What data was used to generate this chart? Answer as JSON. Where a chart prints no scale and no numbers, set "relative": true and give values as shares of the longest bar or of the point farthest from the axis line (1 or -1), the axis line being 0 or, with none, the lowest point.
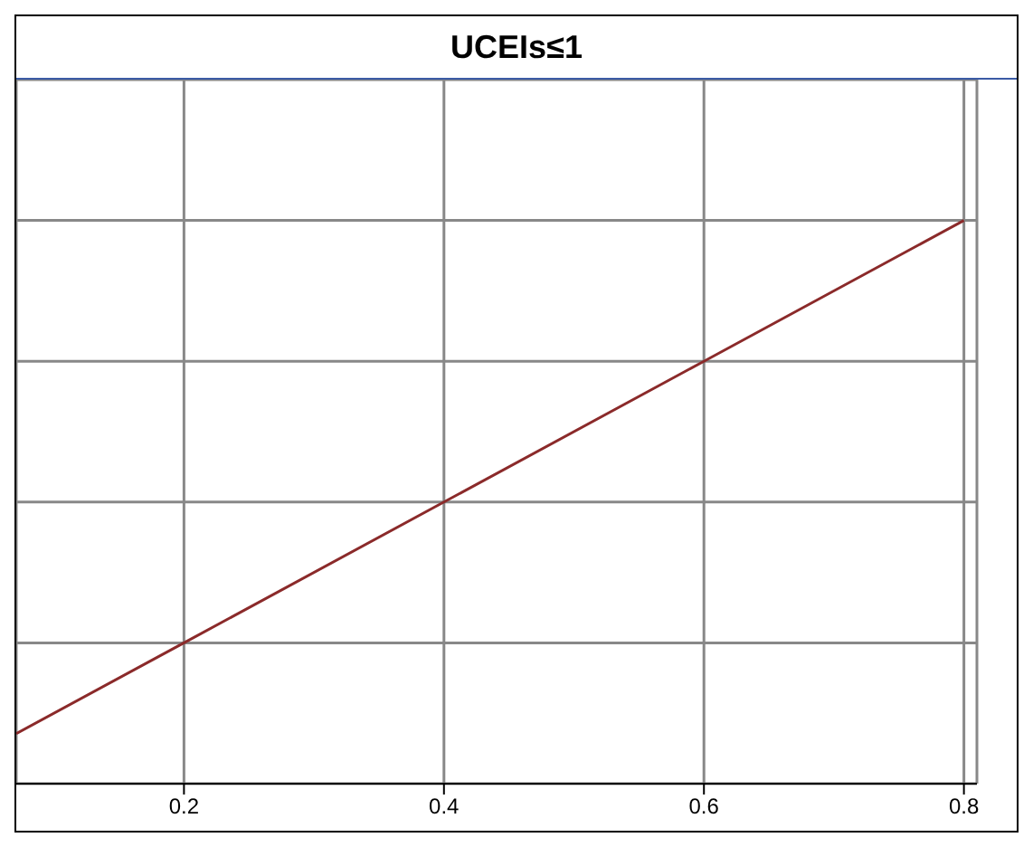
{
  "chart_data": {
    "type": "line",
    "title": "UCEIs≤1",
    "relative": true,
    "x": [
      0.071,
      0.2,
      0.4,
      0.6,
      0.8
    ],
    "series": [
      {
        "color": "#8b2a2a",
        "values": [
          0.089,
          0.25,
          0.5,
          0.75,
          1
        ]
      }
    ],
    "xlim": [
      0.071,
      0.81
    ],
    "xticks": [
      0.2,
      0.4,
      0.6,
      0.8
    ],
    "grid": true,
    "legend": false,
    "tick_labels": "x"
  }
}
